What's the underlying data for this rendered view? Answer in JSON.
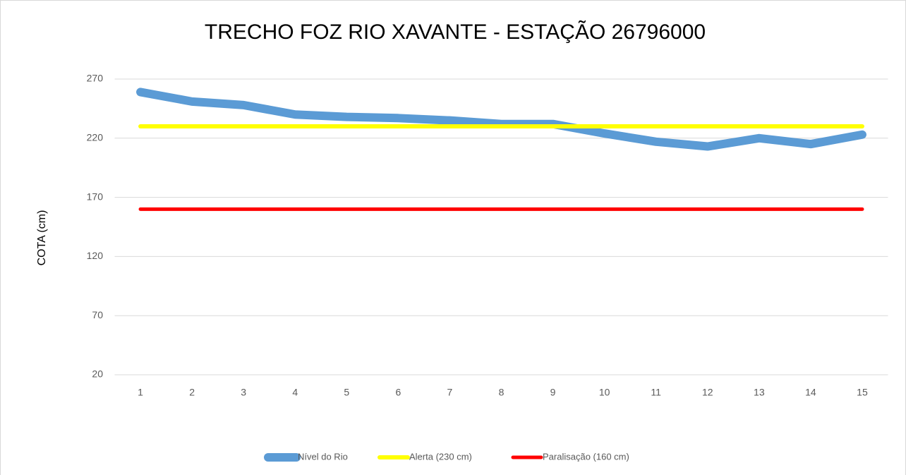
{
  "chart_data": {
    "type": "line",
    "title": "TRECHO FOZ RIO XAVANTE  - ESTAÇÃO 26796000",
    "y_label": "COTA (cm)",
    "categories": [
      "1",
      "2",
      "3",
      "4",
      "5",
      "6",
      "7",
      "8",
      "9",
      "10",
      "11",
      "12",
      "13",
      "14",
      "15"
    ],
    "series": [
      {
        "name": "Nível do Rio",
        "color": "#5b9bd5",
        "values": [
          259,
          251,
          248,
          240,
          238,
          237,
          235,
          232,
          232,
          224,
          217,
          213,
          220,
          215,
          223
        ]
      },
      {
        "name": "Alerta (230 cm)",
        "color": "#ffff00",
        "values": [
          230,
          230,
          230,
          230,
          230,
          230,
          230,
          230,
          230,
          230,
          230,
          230,
          230,
          230,
          230
        ]
      },
      {
        "name": "Paralisação (160 cm)",
        "color": "#ff0000",
        "values": [
          160,
          160,
          160,
          160,
          160,
          160,
          160,
          160,
          160,
          160,
          160,
          160,
          160,
          160,
          160
        ]
      }
    ],
    "ylim": [
      20,
      270
    ],
    "yticks": [
      20,
      70,
      120,
      170,
      220,
      270
    ],
    "grid": true,
    "legend": "bottom"
  }
}
